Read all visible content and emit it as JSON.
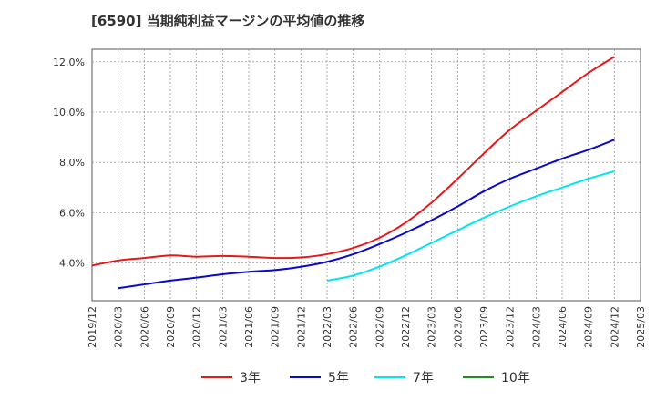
{
  "chart_data": {
    "type": "line",
    "title": "[6590]  当期純利益マージンの平均値の推移",
    "xlabel": "",
    "ylabel": "",
    "x_ticks": [
      "2019/12",
      "2020/03",
      "2020/06",
      "2020/09",
      "2020/12",
      "2021/03",
      "2021/06",
      "2021/09",
      "2021/12",
      "2022/03",
      "2022/06",
      "2022/09",
      "2022/12",
      "2023/03",
      "2023/06",
      "2023/09",
      "2023/12",
      "2024/03",
      "2024/06",
      "2024/09",
      "2024/12",
      "2025/03"
    ],
    "y_ticks": [
      "4.0%",
      "6.0%",
      "8.0%",
      "10.0%",
      "12.0%"
    ],
    "y_tick_values": [
      4,
      6,
      8,
      10,
      12
    ],
    "ylim": [
      2.5,
      12.5
    ],
    "grid": true,
    "legend_position": "bottom",
    "series": [
      {
        "name": "3年",
        "color": "#e31a1c",
        "points": [
          [
            "2019/12",
            3.9
          ],
          [
            "2020/03",
            4.1
          ],
          [
            "2020/06",
            4.2
          ],
          [
            "2020/09",
            4.3
          ],
          [
            "2020/12",
            4.25
          ],
          [
            "2021/03",
            4.28
          ],
          [
            "2021/06",
            4.25
          ],
          [
            "2021/09",
            4.2
          ],
          [
            "2021/12",
            4.22
          ],
          [
            "2022/03",
            4.35
          ],
          [
            "2022/06",
            4.6
          ],
          [
            "2022/09",
            5.0
          ],
          [
            "2022/12",
            5.6
          ],
          [
            "2023/03",
            6.4
          ],
          [
            "2023/06",
            7.35
          ],
          [
            "2023/09",
            8.35
          ],
          [
            "2023/12",
            9.3
          ],
          [
            "2024/03",
            10.05
          ],
          [
            "2024/06",
            10.8
          ],
          [
            "2024/09",
            11.55
          ],
          [
            "2024/12",
            12.2
          ]
        ]
      },
      {
        "name": "5年",
        "color": "#0a0ac8",
        "points": [
          [
            "2020/03",
            3.0
          ],
          [
            "2020/06",
            3.15
          ],
          [
            "2020/09",
            3.3
          ],
          [
            "2020/12",
            3.42
          ],
          [
            "2021/03",
            3.55
          ],
          [
            "2021/06",
            3.65
          ],
          [
            "2021/09",
            3.72
          ],
          [
            "2021/12",
            3.85
          ],
          [
            "2022/03",
            4.05
          ],
          [
            "2022/06",
            4.35
          ],
          [
            "2022/09",
            4.75
          ],
          [
            "2022/12",
            5.2
          ],
          [
            "2023/03",
            5.7
          ],
          [
            "2023/06",
            6.25
          ],
          [
            "2023/09",
            6.85
          ],
          [
            "2023/12",
            7.35
          ],
          [
            "2024/03",
            7.75
          ],
          [
            "2024/06",
            8.15
          ],
          [
            "2024/09",
            8.5
          ],
          [
            "2024/12",
            8.9
          ]
        ]
      },
      {
        "name": "7年",
        "color": "#00e5ee",
        "points": [
          [
            "2022/03",
            3.3
          ],
          [
            "2022/06",
            3.5
          ],
          [
            "2022/09",
            3.85
          ],
          [
            "2022/12",
            4.3
          ],
          [
            "2023/03",
            4.8
          ],
          [
            "2023/06",
            5.3
          ],
          [
            "2023/09",
            5.8
          ],
          [
            "2023/12",
            6.25
          ],
          [
            "2024/03",
            6.65
          ],
          [
            "2024/06",
            7.0
          ],
          [
            "2024/09",
            7.35
          ],
          [
            "2024/12",
            7.65
          ]
        ]
      },
      {
        "name": "10年",
        "color": "#228b22",
        "points": []
      }
    ]
  }
}
